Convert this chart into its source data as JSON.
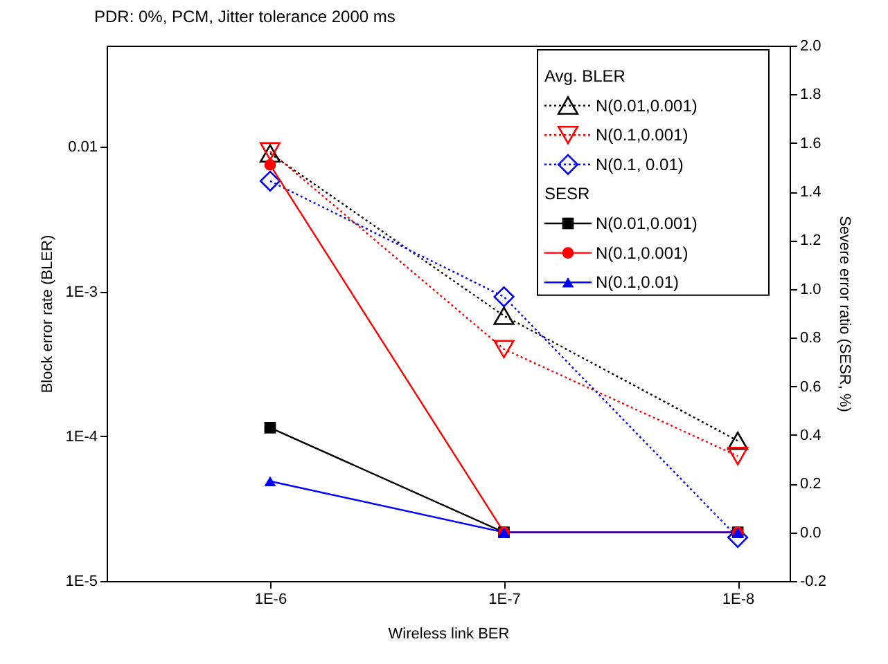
{
  "chart_data": {
    "type": "line",
    "title": "PDR: 0%, PCM, Jitter tolerance 2000 ms",
    "xlabel": "Wireless link BER",
    "ylabel": "Block error rate (BLER)",
    "y2label": "Severe error ratio (SESR, %)",
    "legend_title": [
      "Avg. BLER",
      "SESR"
    ],
    "legend": "top right",
    "grid": false,
    "log": "xy",
    "x": [
      1e-06,
      1e-07,
      1e-08
    ],
    "xlim": [
      5e-06,
      6e-09
    ],
    "xticks": [
      {
        "value": 1e-06,
        "label": "1E-6"
      },
      {
        "value": 1e-07,
        "label": "1E-7"
      },
      {
        "value": 1e-08,
        "label": "1E-8"
      }
    ],
    "ylim": [
      1e-05,
      0.05
    ],
    "yticks": [
      {
        "value": 1e-05,
        "label": "1E-5"
      },
      {
        "value": 0.0001,
        "label": "1E-4"
      },
      {
        "value": 0.001,
        "label": "1E-3"
      },
      0.01
    ],
    "y2lim": [
      -0.2,
      2.0
    ],
    "y2ticks": [
      -0.2,
      {
        "value": 0.0,
        "label": "0.0"
      },
      0.2,
      0.4,
      0.6,
      0.8,
      {
        "value": 1.0,
        "label": "1.0"
      },
      1.2,
      1.4,
      1.6,
      1.8,
      {
        "value": 2.0,
        "label": "2.0"
      }
    ],
    "series": [
      {
        "name": "N(0.01,0.001)",
        "color": "#000000",
        "marker": "triangle",
        "line_style": "dotted",
        "values": [
          0.009,
          0.00068,
          9.3e-05
        ]
      },
      {
        "name": "N(0.1,0.001)",
        "color": "#ff0000",
        "marker": "triangle-down",
        "line_style": "dotted",
        "values": [
          0.0093,
          0.0004,
          7.3e-05
        ]
      },
      {
        "name": "N(0.1, 0.01)",
        "color": "#0000ff",
        "marker": "diamond",
        "line_style": "dotted",
        "values": [
          0.0058,
          0.00092,
          2e-05
        ]
      },
      {
        "name": "N(0.01,0.001)",
        "color": "#000000",
        "marker": "square",
        "line_style": "solid",
        "axis": "y2",
        "values": [
          0.43,
          0.0,
          0.0
        ]
      },
      {
        "name": "N(0.1,0.001)",
        "color": "#ff0000",
        "marker": "circle",
        "line_style": "solid",
        "axis": "y2",
        "values": [
          1.51,
          0.0,
          0.0
        ]
      },
      {
        "name": "N(0.1,0.01)",
        "color": "#0000ff",
        "marker": "triangle",
        "line_style": "solid",
        "axis": "y2",
        "values": [
          0.21,
          0.0,
          0.0
        ]
      }
    ]
  }
}
